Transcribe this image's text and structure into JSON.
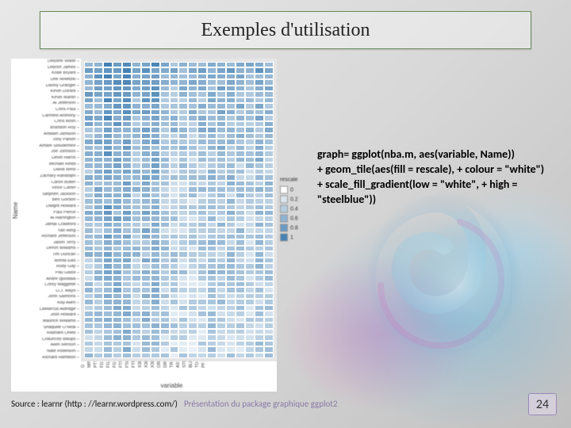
{
  "title": "Exemples d'utilisation",
  "code_lines": [
    "graph= ggplot(nba.m, aes(variable, Name))",
    "+ geom_tile(aes(fill = rescale), + colour = \"white\")",
    "+ scale_fill_gradient(low = \"white\", + high = \"steelblue\"))"
  ],
  "source_text": "Source : learnr (http : //learnr.wordpress.com/)",
  "footer_text": "Présentation du package graphique ggplot2",
  "page_number": "24",
  "chart": {
    "type": "heatmap",
    "ylabel": "Name",
    "xlabel": "variable",
    "background_color": "#ffffff",
    "panel_color": "#e6e6e6",
    "tile_border": "#ffffff",
    "gradient_low": "#ffffff",
    "gradient_high": "#4682b4",
    "legend_title": "rescale",
    "legend_breaks": [
      0.0,
      0.2,
      0.4,
      0.6,
      0.8,
      1.0
    ],
    "legend_labels": [
      "0",
      "0.2",
      "0.4",
      "0.6",
      "0.8",
      "1"
    ],
    "y_names": [
      "Dwyane Wade",
      "LeBron James",
      "Kobe Bryant",
      "Dirk Nowitzki",
      "Danny Granger",
      "Kevin Durant",
      "Kevin Martin",
      "Al Jefferson",
      "Chris Paul",
      "Carmelo Anthony",
      "Chris Bosh",
      "Brandon Roy",
      "Antawn Jamison",
      "Tony Parker",
      "Amare Stoudemire",
      "Joe Johnson",
      "Devin Harris",
      "Michael Redd",
      "David West",
      "Zachary Randolph",
      "Caron Butler",
      "Vince Carter",
      "Stephen Jackson",
      "Ben Gordon",
      "Dwight Howard",
      "Paul Pierce",
      "Al Harrington",
      "Jamal Crawford",
      "Yao Ming",
      "Richard Jefferson",
      "Jason Terry",
      "Deron Williams",
      "Tim Duncan",
      "Monta Ellis",
      "Rudy Gay",
      "Pau Gasol",
      "Andre Iguodala",
      "Corey Maggette",
      "O.J. Mayo",
      "John Salmons",
      "Ray Allen",
      "LaMarcus Aldridge",
      "Josh Howard",
      "Maurice Williams",
      "Shaquille O'Neal",
      "Rashard Lewis",
      "Chauncey Billups",
      "Allen Iverson",
      "Nate Robinson",
      "Richard Hamilton"
    ],
    "x_vars": [
      "G",
      "MIN",
      "PTS",
      "FGM",
      "FGA",
      "FGP",
      "FTM",
      "FTA",
      "FTP",
      "X3PM",
      "X3PA",
      "X3PP",
      "ORB",
      "DRB",
      "TRB",
      "AST",
      "STL",
      "BLK",
      "TO",
      "PF"
    ],
    "row_seeds": [
      0.92,
      0.95,
      0.88,
      0.84,
      0.78,
      0.8,
      0.7,
      0.74,
      0.76,
      0.72,
      0.66,
      0.68,
      0.6,
      0.64,
      0.62,
      0.58,
      0.56,
      0.5,
      0.54,
      0.52,
      0.48,
      0.46,
      0.44,
      0.42,
      0.5,
      0.46,
      0.4,
      0.38,
      0.44,
      0.36,
      0.4,
      0.42,
      0.44,
      0.38,
      0.36,
      0.46,
      0.34,
      0.32,
      0.34,
      0.32,
      0.36,
      0.34,
      0.3,
      0.3,
      0.38,
      0.28,
      0.3,
      0.28,
      0.26,
      0.28
    ],
    "col_seeds": [
      0.55,
      0.6,
      0.9,
      0.8,
      0.78,
      0.45,
      0.7,
      0.68,
      0.4,
      0.3,
      0.32,
      0.28,
      0.35,
      0.5,
      0.48,
      0.45,
      0.4,
      0.3,
      0.48,
      0.42
    ]
  },
  "colors": {
    "title_border": "#6a8a5a",
    "code_text": "#000000",
    "footer_text": "#8a7aa8",
    "pagenum_border": "#9a8ab8"
  }
}
